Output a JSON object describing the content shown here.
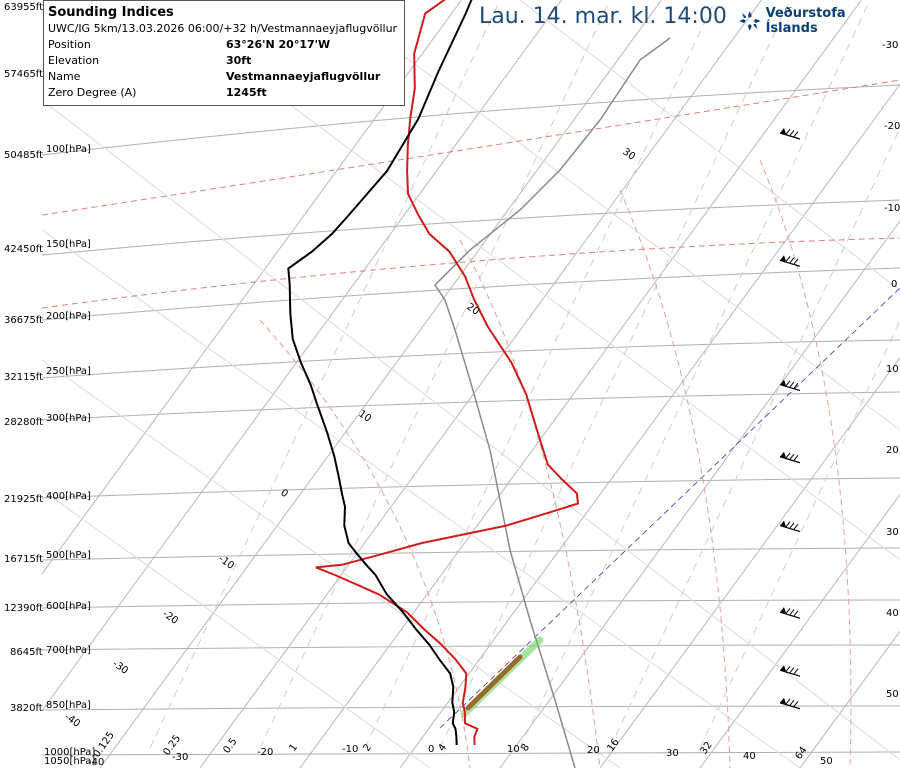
{
  "header": {
    "datetime": "Lau. 14. mar. kl. 14:00",
    "brand": "Veðurstofa Íslands"
  },
  "info": {
    "title": "Sounding Indices",
    "subtitle": "UWC/IG 5km/13.03.2026 06:00/+32 h/Vestmannaeyjaflugvöllur",
    "rows": [
      {
        "key": "Position",
        "value": "63°26'N 20°17'W"
      },
      {
        "key": "Elevation",
        "value": "30ft"
      },
      {
        "key": "Name",
        "value": "Vestmannaeyjaflugvöllur"
      },
      {
        "key": "Zero Degree (A)",
        "value": "1245ft"
      }
    ]
  },
  "colors": {
    "temperature": "#d11c1c",
    "dewpoint": "#000000",
    "parcel": "#8a8a8a",
    "dry_adiabat": "#d46a6a",
    "isotherm": "#b0b0b0",
    "moist_adiabat": "#c8c8c8",
    "hodo_line": "#3333cc",
    "cloud": "#9a6a2a",
    "cloud_glow": "#66cc55",
    "brand": "#0b3f75",
    "title_blue": "#1f4b7a"
  },
  "chart_data": {
    "type": "line",
    "title": "",
    "y_axis": {
      "scale": "log-pressure",
      "pressure_labels": [
        "100[hPa]",
        "150[hPa]",
        "200[hPa]",
        "250[hPa]",
        "300[hPa]",
        "400[hPa]",
        "500[hPa]",
        "600[hPa]",
        "700[hPa]",
        "850[hPa]",
        "1000[hPa]",
        "1050[hPa]"
      ],
      "pressure_values": [
        100,
        150,
        200,
        250,
        300,
        400,
        500,
        600,
        700,
        850,
        1000,
        1050
      ],
      "height_labels": [
        "63955ft",
        "57465ft",
        "50485ft",
        "42450ft",
        "36675ft",
        "32115ft",
        "28280ft",
        "21925ft",
        "16715ft",
        "12390ft",
        "8645ft",
        "3820ft"
      ]
    },
    "right_temperature_ticks": [
      "-30",
      "-20",
      "-10",
      "0",
      "10",
      "20",
      "30",
      "40",
      "50"
    ],
    "bottom_ticks": [
      "-40",
      "-30",
      "-20",
      "-10",
      "0",
      "10",
      "20",
      "30",
      "40",
      "50"
    ],
    "mixing_ratio_labels": [
      "0.125",
      "0.25",
      "0.5",
      "1",
      "2",
      "4",
      "8",
      "16",
      "32",
      "64"
    ],
    "isotherm_labels": [
      "-40",
      "-30",
      "-20",
      "-10",
      "0",
      "10",
      "20",
      "30"
    ],
    "series": [
      {
        "key": "temperature",
        "points": [
          [
            1000,
            5.5
          ],
          [
            970,
            4.8
          ],
          [
            940,
            4.5
          ],
          [
            920,
            2.5
          ],
          [
            880,
            1.5
          ],
          [
            850,
            0.5
          ],
          [
            800,
            -0.5
          ],
          [
            760,
            -1.5
          ],
          [
            720,
            -4
          ],
          [
            680,
            -7
          ],
          [
            640,
            -10.5
          ],
          [
            600,
            -14
          ],
          [
            560,
            -19
          ],
          [
            520,
            -26
          ],
          [
            505,
            -29
          ],
          [
            500,
            -26
          ],
          [
            480,
            -22
          ],
          [
            460,
            -18
          ],
          [
            430,
            -9
          ],
          [
            410,
            -5
          ],
          [
            395,
            -2
          ],
          [
            380,
            -3
          ],
          [
            360,
            -6
          ],
          [
            340,
            -9
          ],
          [
            300,
            -13
          ],
          [
            260,
            -17.5
          ],
          [
            230,
            -22
          ],
          [
            200,
            -28
          ],
          [
            180,
            -32
          ],
          [
            165,
            -35
          ],
          [
            150,
            -39
          ],
          [
            140,
            -43
          ],
          [
            130,
            -46
          ],
          [
            120,
            -49
          ],
          [
            110,
            -51
          ],
          [
            100,
            -53
          ],
          [
            90,
            -55
          ],
          [
            80,
            -57
          ],
          [
            70,
            -60
          ],
          [
            60,
            -62
          ],
          [
            55,
            -60
          ],
          [
            50,
            -58
          ],
          [
            45,
            -56
          ]
        ]
      },
      {
        "key": "dewpoint",
        "points": [
          [
            1000,
            3.3
          ],
          [
            970,
            2.6
          ],
          [
            940,
            1.8
          ],
          [
            920,
            1.0
          ],
          [
            880,
            0.2
          ],
          [
            850,
            -0.8
          ],
          [
            800,
            -2.0
          ],
          [
            760,
            -3.5
          ],
          [
            720,
            -6.0
          ],
          [
            680,
            -8.5
          ],
          [
            640,
            -11.5
          ],
          [
            600,
            -14.5
          ],
          [
            560,
            -18.0
          ],
          [
            520,
            -21.0
          ],
          [
            500,
            -23.0
          ],
          [
            480,
            -25.0
          ],
          [
            460,
            -27.0
          ],
          [
            430,
            -29.0
          ],
          [
            400,
            -30.5
          ],
          [
            380,
            -32.0
          ],
          [
            360,
            -33.5
          ],
          [
            330,
            -36.0
          ],
          [
            300,
            -39.0
          ],
          [
            270,
            -42.5
          ],
          [
            250,
            -45.0
          ],
          [
            230,
            -48.0
          ],
          [
            210,
            -51.0
          ],
          [
            190,
            -53.5
          ],
          [
            170,
            -56.0
          ],
          [
            160,
            -57.5
          ],
          [
            150,
            -56.0
          ],
          [
            140,
            -55.0
          ],
          [
            130,
            -54.5
          ],
          [
            110,
            -53.5
          ],
          [
            90,
            -54.0
          ],
          [
            75,
            -55.5
          ],
          [
            60,
            -57.0
          ],
          [
            50,
            -58.5
          ],
          [
            45,
            -59.5
          ]
        ]
      }
    ],
    "wind_barbs_pressure": [
      95,
      155,
      250,
      330,
      430,
      600,
      750,
      850
    ]
  }
}
